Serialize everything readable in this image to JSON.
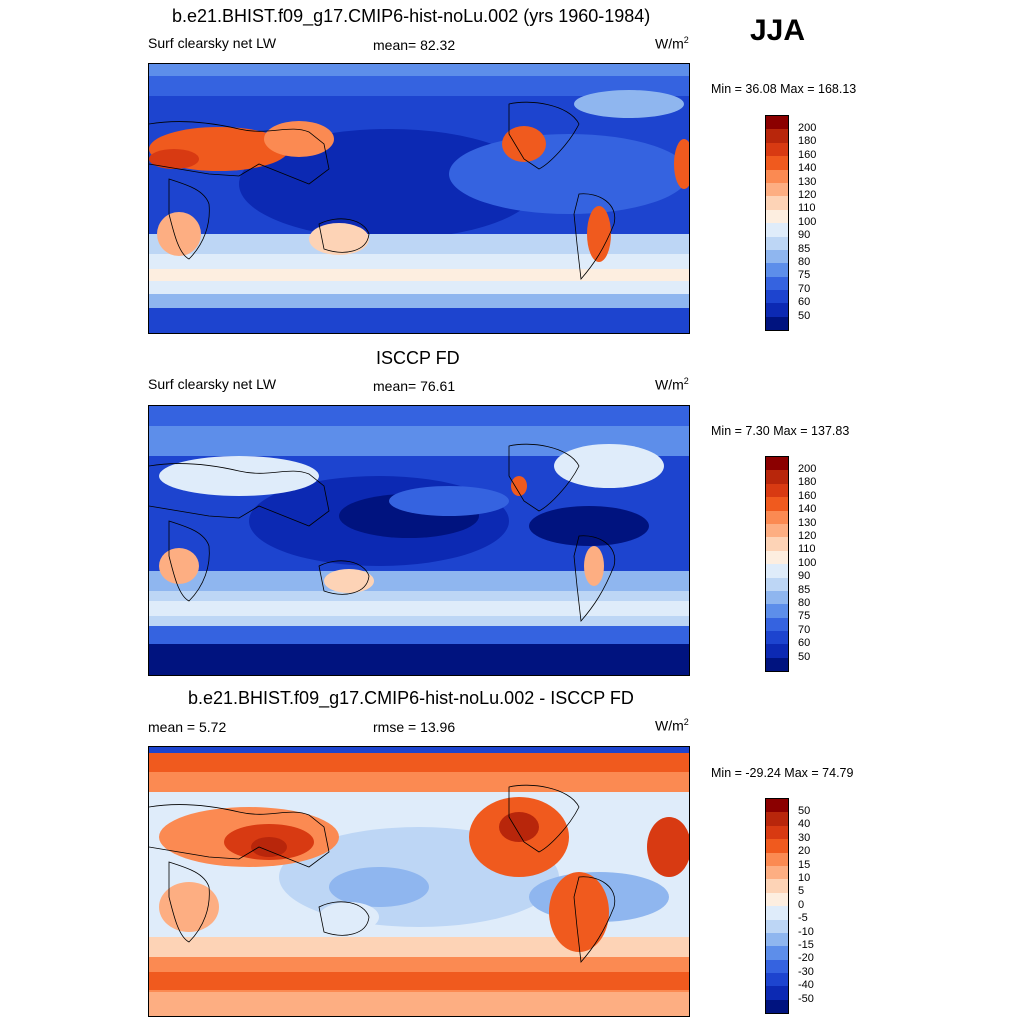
{
  "season": "JJA",
  "panels": [
    {
      "title": "b.e21.BHIST.f09_g17.CMIP6-hist-noLu.002 (yrs 1960-1984)",
      "left_label": "Surf clearsky net LW",
      "center_label": "mean=  82.32",
      "units": "W/m",
      "units_sup": "2",
      "minmax": "Min =  36.08 Max = 168.13",
      "colorbar": {
        "ticks": [
          "200",
          "180",
          "160",
          "140",
          "130",
          "120",
          "110",
          "100",
          "90",
          "85",
          "80",
          "75",
          "70",
          "60",
          "50"
        ],
        "colors": [
          "#8b0000",
          "#b8260b",
          "#d83a12",
          "#f05a1e",
          "#fb8a52",
          "#fdae82",
          "#fdd3b6",
          "#fdeee0",
          "#dfecfa",
          "#bdd6f5",
          "#8fb6ef",
          "#5d8eea",
          "#3563e0",
          "#1d44cf",
          "#0c29b3",
          "#00137f"
        ]
      }
    },
    {
      "title": "ISCCP FD",
      "left_label": "Surf clearsky net LW",
      "center_label": "mean=  76.61",
      "units": "W/m",
      "units_sup": "2",
      "minmax": "Min =   7.30 Max = 137.83",
      "colorbar": {
        "ticks": [
          "200",
          "180",
          "160",
          "140",
          "130",
          "120",
          "110",
          "100",
          "90",
          "85",
          "80",
          "75",
          "70",
          "60",
          "50"
        ],
        "colors": [
          "#8b0000",
          "#b8260b",
          "#d83a12",
          "#f05a1e",
          "#fb8a52",
          "#fdae82",
          "#fdd3b6",
          "#fdeee0",
          "#dfecfa",
          "#bdd6f5",
          "#8fb6ef",
          "#5d8eea",
          "#3563e0",
          "#1d44cf",
          "#0c29b3",
          "#00137f"
        ]
      }
    },
    {
      "title": "b.e21.BHIST.f09_g17.CMIP6-hist-noLu.002 - ISCCP FD",
      "left_label": "mean =   5.72",
      "center_label": "rmse =  13.96",
      "units": "W/m",
      "units_sup": "2",
      "minmax": "Min = -29.24 Max =  74.79",
      "colorbar": {
        "ticks": [
          "50",
          "40",
          "30",
          "20",
          "15",
          "10",
          "5",
          "0",
          "-5",
          "-10",
          "-15",
          "-20",
          "-30",
          "-40",
          "-50"
        ],
        "colors": [
          "#8b0000",
          "#b8260b",
          "#d83a12",
          "#f05a1e",
          "#fb8a52",
          "#fdae82",
          "#fdd3b6",
          "#fdeee0",
          "#dfecfa",
          "#bdd6f5",
          "#8fb6ef",
          "#5d8eea",
          "#3563e0",
          "#1d44cf",
          "#0c29b3",
          "#00137f"
        ]
      }
    }
  ]
}
